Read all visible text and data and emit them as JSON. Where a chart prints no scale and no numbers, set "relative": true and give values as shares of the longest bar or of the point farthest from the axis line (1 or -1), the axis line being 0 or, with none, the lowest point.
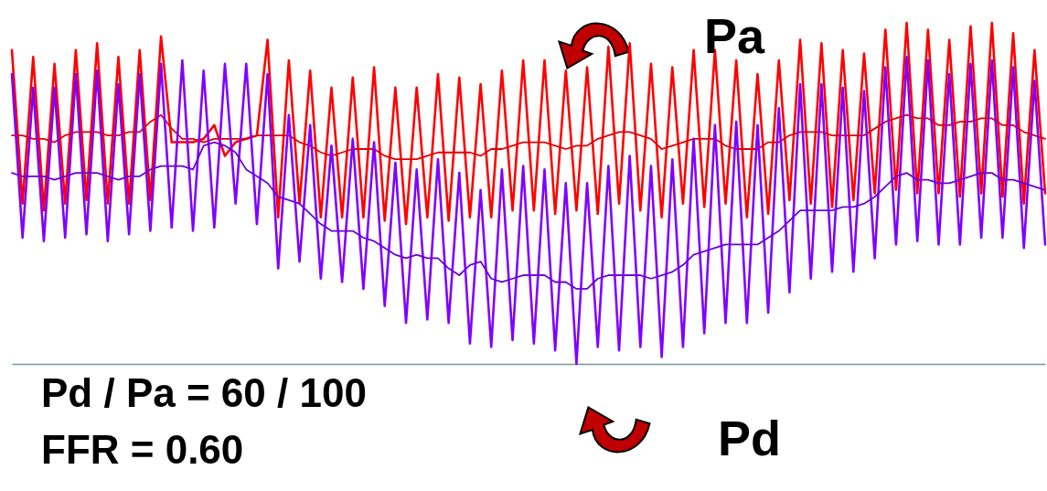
{
  "chart_data": {
    "type": "line",
    "relative": true,
    "categories": [
      null,
      null,
      null,
      null,
      null,
      null,
      null,
      null,
      null,
      null,
      null,
      null,
      null,
      null,
      null,
      null,
      null,
      null,
      null,
      null,
      null,
      null,
      null,
      null,
      null,
      null,
      null,
      null,
      null,
      null,
      null,
      null,
      null,
      null,
      null,
      null,
      null,
      null,
      null,
      null,
      null,
      null,
      null,
      null,
      null,
      null,
      null,
      null,
      null,
      null,
      null,
      null,
      null,
      null,
      null,
      null,
      null,
      null,
      null,
      null,
      null,
      null,
      null,
      null,
      null,
      null,
      null,
      null,
      null,
      null,
      null,
      null,
      null,
      null,
      null,
      null,
      null,
      null,
      null,
      null,
      null,
      null,
      null,
      null,
      null,
      null,
      null,
      null,
      null,
      null,
      null,
      null,
      null,
      null,
      null,
      null,
      null,
      null
    ],
    "annotations": [
      "Pd / Pa = 60 / 100",
      "FFR = 0.60"
    ],
    "series": [
      {
        "name": "Pa",
        "color": "#ff0000",
        "values": [
          0.92,
          0.47,
          0.9,
          0.45,
          0.88,
          0.47,
          0.92,
          0.48,
          0.94,
          0.47,
          0.9,
          0.47,
          0.92,
          0.48,
          0.96,
          0.65,
          0.65,
          0.65,
          0.66,
          0.7,
          0.61,
          0.65,
          0.66,
          0.67,
          0.95,
          0.43,
          0.89,
          0.47,
          0.86,
          0.43,
          0.81,
          0.43,
          0.84,
          0.43,
          0.87,
          0.42,
          0.81,
          0.41,
          0.81,
          0.43,
          0.85,
          0.42,
          0.84,
          0.43,
          0.82,
          0.43,
          0.86,
          0.45,
          0.89,
          0.45,
          0.89,
          0.44,
          0.86,
          0.45,
          0.87,
          0.44,
          0.93,
          0.47,
          0.94,
          0.45,
          0.88,
          0.43,
          0.87,
          0.47,
          0.92,
          0.46,
          0.92,
          0.47,
          0.89,
          0.43,
          0.85,
          0.44,
          0.89,
          0.48,
          0.95,
          0.47,
          0.94,
          0.46,
          0.92,
          0.48,
          0.91,
          0.5,
          0.98,
          0.51,
          1.0,
          0.5,
          0.98,
          0.5,
          0.95,
          0.49,
          0.99,
          0.5,
          1.0,
          0.49,
          0.97,
          0.47,
          0.92,
          0.5
        ]
      },
      {
        "color": "#e00000",
        "values": [
          0.67,
          0.67,
          0.66,
          0.66,
          0.65,
          0.67,
          0.68,
          0.68,
          0.68,
          0.67,
          0.67,
          0.68,
          0.68,
          0.71,
          0.73,
          0.69,
          0.66,
          0.66,
          0.65,
          0.66,
          0.66,
          0.66,
          0.66,
          0.67,
          0.67,
          0.67,
          0.67,
          0.65,
          0.64,
          0.62,
          0.61,
          0.62,
          0.63,
          0.63,
          0.63,
          0.61,
          0.6,
          0.6,
          0.6,
          0.61,
          0.62,
          0.62,
          0.62,
          0.62,
          0.61,
          0.63,
          0.63,
          0.64,
          0.65,
          0.65,
          0.65,
          0.64,
          0.63,
          0.64,
          0.64,
          0.66,
          0.67,
          0.68,
          0.68,
          0.67,
          0.66,
          0.63,
          0.64,
          0.65,
          0.66,
          0.66,
          0.66,
          0.64,
          0.63,
          0.63,
          0.63,
          0.65,
          0.65,
          0.67,
          0.68,
          0.68,
          0.68,
          0.67,
          0.67,
          0.67,
          0.67,
          0.69,
          0.71,
          0.72,
          0.73,
          0.72,
          0.72,
          0.7,
          0.7,
          0.71,
          0.71,
          0.72,
          0.72,
          0.7,
          0.7,
          0.68,
          0.67,
          0.66
        ]
      },
      {
        "name": "Pd",
        "color": "#8000ff",
        "values": [
          0.85,
          0.37,
          0.81,
          0.36,
          0.81,
          0.37,
          0.85,
          0.38,
          0.86,
          0.36,
          0.82,
          0.38,
          0.85,
          0.39,
          0.88,
          0.4,
          0.89,
          0.39,
          0.86,
          0.4,
          0.88,
          0.47,
          0.88,
          0.41,
          0.85,
          0.28,
          0.73,
          0.3,
          0.7,
          0.25,
          0.64,
          0.24,
          0.66,
          0.22,
          0.65,
          0.17,
          0.59,
          0.12,
          0.57,
          0.13,
          0.6,
          0.12,
          0.56,
          0.06,
          0.51,
          0.05,
          0.57,
          0.07,
          0.58,
          0.06,
          0.57,
          0.04,
          0.53,
          0.0,
          0.53,
          0.05,
          0.58,
          0.04,
          0.61,
          0.05,
          0.58,
          0.02,
          0.6,
          0.05,
          0.66,
          0.09,
          0.7,
          0.12,
          0.71,
          0.12,
          0.7,
          0.15,
          0.75,
          0.21,
          0.82,
          0.25,
          0.82,
          0.27,
          0.81,
          0.27,
          0.8,
          0.31,
          0.87,
          0.35,
          0.9,
          0.36,
          0.89,
          0.35,
          0.85,
          0.35,
          0.88,
          0.37,
          0.89,
          0.37,
          0.87,
          0.34,
          0.83,
          0.35
        ]
      },
      {
        "color": "#6a00d8",
        "values": [
          0.56,
          0.55,
          0.55,
          0.55,
          0.54,
          0.55,
          0.56,
          0.56,
          0.56,
          0.55,
          0.54,
          0.55,
          0.55,
          0.57,
          0.58,
          0.58,
          0.58,
          0.57,
          0.64,
          0.65,
          0.64,
          0.62,
          0.57,
          0.55,
          0.53,
          0.49,
          0.48,
          0.47,
          0.44,
          0.41,
          0.39,
          0.39,
          0.39,
          0.37,
          0.36,
          0.34,
          0.32,
          0.31,
          0.32,
          0.31,
          0.31,
          0.28,
          0.26,
          0.29,
          0.3,
          0.25,
          0.24,
          0.25,
          0.26,
          0.26,
          0.26,
          0.24,
          0.24,
          0.22,
          0.22,
          0.25,
          0.26,
          0.26,
          0.26,
          0.26,
          0.25,
          0.26,
          0.27,
          0.29,
          0.32,
          0.33,
          0.34,
          0.35,
          0.35,
          0.35,
          0.35,
          0.37,
          0.39,
          0.42,
          0.45,
          0.45,
          0.45,
          0.45,
          0.46,
          0.46,
          0.47,
          0.49,
          0.52,
          0.55,
          0.56,
          0.54,
          0.54,
          0.53,
          0.53,
          0.54,
          0.55,
          0.56,
          0.56,
          0.54,
          0.54,
          0.53,
          0.52,
          0.51
        ]
      }
    ]
  }
}
